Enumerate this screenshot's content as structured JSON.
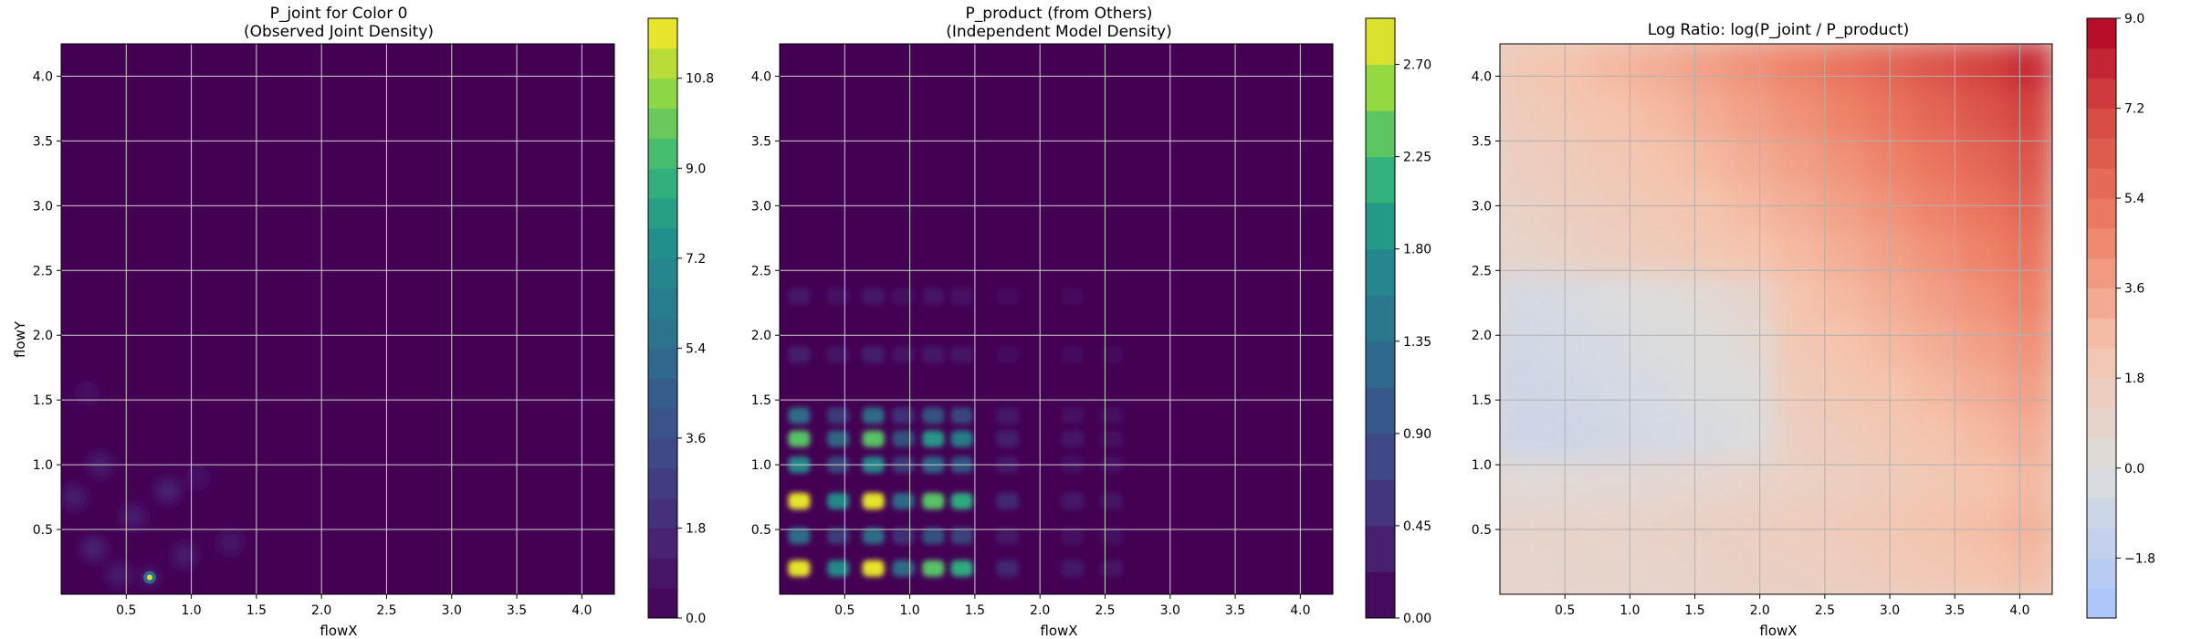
{
  "chart_data": [
    {
      "type": "heatmap",
      "title": "P_joint for Color 0",
      "subtitle": "(Observed Joint Density)",
      "xlabel": "flowX",
      "ylabel": "flowY",
      "xlim": [
        0.0,
        4.25
      ],
      "ylim": [
        0.0,
        4.25
      ],
      "x_ticks": [
        "0.5",
        "1.0",
        "1.5",
        "2.0",
        "2.5",
        "3.0",
        "3.5",
        "4.0"
      ],
      "y_ticks": [
        "0.5",
        "1.0",
        "1.5",
        "2.0",
        "2.5",
        "3.0",
        "3.5",
        "4.0"
      ],
      "grid": true,
      "colormap": "viridis",
      "colorbar": {
        "range": [
          0.0,
          12.0
        ],
        "ticks": [
          "0.0",
          "1.8",
          "3.6",
          "5.4",
          "7.2",
          "9.0",
          "10.8"
        ],
        "tick_values": [
          0,
          1.8,
          3.6,
          5.4,
          7.2,
          9.0,
          10.8
        ]
      },
      "background_level": 0.0,
      "peaks": [
        {
          "x": 0.68,
          "y": 0.13,
          "value": 11.5
        },
        {
          "x": 0.82,
          "y": 0.8,
          "value": 2.5
        },
        {
          "x": 0.25,
          "y": 0.35,
          "value": 1.6
        },
        {
          "x": 0.55,
          "y": 0.6,
          "value": 1.4
        },
        {
          "x": 0.3,
          "y": 1.0,
          "value": 1.2
        },
        {
          "x": 0.1,
          "y": 0.75,
          "value": 1.3
        },
        {
          "x": 0.95,
          "y": 0.3,
          "value": 1.2
        },
        {
          "x": 1.3,
          "y": 0.4,
          "value": 0.9
        },
        {
          "x": 1.05,
          "y": 0.9,
          "value": 0.8
        },
        {
          "x": 0.2,
          "y": 1.55,
          "value": 0.7
        },
        {
          "x": 0.45,
          "y": 0.15,
          "value": 1.3
        }
      ]
    },
    {
      "type": "heatmap",
      "title": "P_product (from Others)",
      "subtitle": "(Independent Model Density)",
      "xlabel": "flowX",
      "ylabel": "",
      "xlim": [
        0.0,
        4.25
      ],
      "ylim": [
        0.0,
        4.25
      ],
      "x_ticks": [
        "0.5",
        "1.0",
        "1.5",
        "2.0",
        "2.5",
        "3.0",
        "3.5",
        "4.0"
      ],
      "y_ticks": [
        "0.5",
        "1.0",
        "1.5",
        "2.0",
        "2.5",
        "3.0",
        "3.5",
        "4.0"
      ],
      "grid": true,
      "colormap": "viridis",
      "colorbar": {
        "range": [
          0.0,
          2.925
        ],
        "ticks": [
          "0.00",
          "0.45",
          "0.90",
          "1.35",
          "1.80",
          "2.25",
          "2.70"
        ],
        "tick_values": [
          0,
          0.45,
          0.9,
          1.35,
          1.8,
          2.25,
          2.7
        ]
      },
      "marginal_x": [
        {
          "x": 0.15,
          "weight": 1.0
        },
        {
          "x": 0.45,
          "weight": 0.6
        },
        {
          "x": 0.72,
          "weight": 1.0
        },
        {
          "x": 0.95,
          "weight": 0.5
        },
        {
          "x": 1.18,
          "weight": 0.8
        },
        {
          "x": 1.4,
          "weight": 0.7
        },
        {
          "x": 1.75,
          "weight": 0.2
        },
        {
          "x": 2.25,
          "weight": 0.12
        },
        {
          "x": 2.55,
          "weight": 0.08
        }
      ],
      "marginal_y": [
        {
          "y": 0.2,
          "weight": 1.0
        },
        {
          "y": 0.45,
          "weight": 0.5
        },
        {
          "y": 0.72,
          "weight": 1.0
        },
        {
          "y": 1.0,
          "weight": 0.6
        },
        {
          "y": 1.2,
          "weight": 0.8
        },
        {
          "y": 1.38,
          "weight": 0.5
        },
        {
          "y": 1.85,
          "weight": 0.15
        },
        {
          "y": 2.3,
          "weight": 0.1
        }
      ]
    },
    {
      "type": "heatmap",
      "title": "Log Ratio: log(P_joint / P_product)",
      "subtitle": "",
      "xlabel": "flowX",
      "ylabel": "",
      "xlim": [
        0.0,
        4.25
      ],
      "ylim": [
        0.0,
        4.25
      ],
      "x_ticks": [
        "0.5",
        "1.0",
        "1.5",
        "2.0",
        "2.5",
        "3.0",
        "3.5",
        "4.0"
      ],
      "y_ticks": [
        "0.5",
        "1.0",
        "1.5",
        "2.0",
        "2.5",
        "3.0",
        "3.5",
        "4.0"
      ],
      "grid": true,
      "colormap": "coolwarm",
      "colorbar": {
        "range": [
          -3.0,
          9.0
        ],
        "ticks": [
          "−1.8",
          "0.0",
          "1.8",
          "3.6",
          "5.4",
          "7.2",
          "9.0"
        ],
        "tick_values": [
          -1.8,
          0,
          1.8,
          3.6,
          5.4,
          7.2,
          9.0
        ]
      },
      "trend": "values near 0 to 2 in the lower-left, rising toward about 9 in the upper-right corner; slightly negative bands around flowY 1.0–2.5 on the left"
    }
  ]
}
